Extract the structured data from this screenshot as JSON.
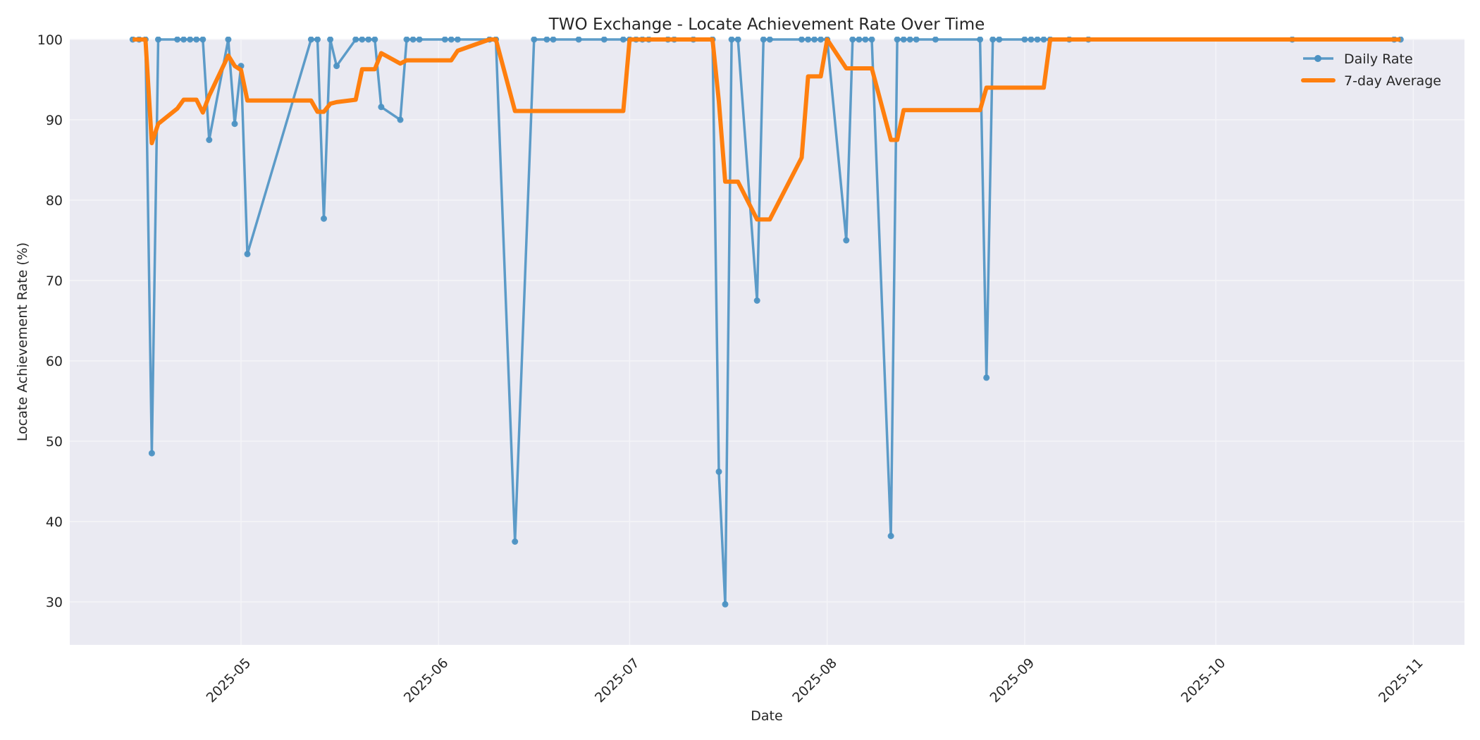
{
  "chart_data": {
    "type": "line",
    "title": "TWO Exchange - Locate Achievement Rate Over Time",
    "xlabel": "Date",
    "ylabel": "Locate Achievement Rate (%)",
    "ylim": [
      24.7,
      100
    ],
    "xlim": [
      "2025-04-03",
      "2025-11-06"
    ],
    "yticks": [
      30,
      40,
      50,
      60,
      70,
      80,
      90,
      100
    ],
    "xticks": [
      "2025-05",
      "2025-06",
      "2025-07",
      "2025-08",
      "2025-09",
      "2025-10",
      "2025-11"
    ],
    "xtick_dates": [
      "2025-05-01",
      "2025-06-01",
      "2025-07-01",
      "2025-08-01",
      "2025-09-01",
      "2025-10-01",
      "2025-11-01"
    ],
    "grid": true,
    "background": "#eaeaf2",
    "legend": {
      "position": "upper right",
      "entries": [
        "Daily Rate",
        "7-day Average"
      ]
    },
    "series": [
      {
        "name": "Daily Rate",
        "color": "#4c92c3",
        "marker": "circle",
        "points": [
          [
            "2025-04-14",
            100
          ],
          [
            "2025-04-15",
            100
          ],
          [
            "2025-04-16",
            100
          ],
          [
            "2025-04-17",
            48.5
          ],
          [
            "2025-04-18",
            100
          ],
          [
            "2025-04-21",
            100
          ],
          [
            "2025-04-22",
            100
          ],
          [
            "2025-04-23",
            100
          ],
          [
            "2025-04-24",
            100
          ],
          [
            "2025-04-25",
            100
          ],
          [
            "2025-04-26",
            87.5
          ],
          [
            "2025-04-29",
            100
          ],
          [
            "2025-04-30",
            89.5
          ],
          [
            "2025-05-01",
            96.7
          ],
          [
            "2025-05-02",
            73.3
          ],
          [
            "2025-05-12",
            100
          ],
          [
            "2025-05-13",
            100
          ],
          [
            "2025-05-14",
            77.7
          ],
          [
            "2025-05-15",
            100
          ],
          [
            "2025-05-16",
            96.7
          ],
          [
            "2025-05-19",
            100
          ],
          [
            "2025-05-20",
            100
          ],
          [
            "2025-05-21",
            100
          ],
          [
            "2025-05-22",
            100
          ],
          [
            "2025-05-23",
            91.6
          ],
          [
            "2025-05-26",
            90
          ],
          [
            "2025-05-27",
            100
          ],
          [
            "2025-05-28",
            100
          ],
          [
            "2025-05-29",
            100
          ],
          [
            "2025-06-02",
            100
          ],
          [
            "2025-06-03",
            100
          ],
          [
            "2025-06-04",
            100
          ],
          [
            "2025-06-09",
            100
          ],
          [
            "2025-06-10",
            100
          ],
          [
            "2025-06-13",
            37.5
          ],
          [
            "2025-06-16",
            100
          ],
          [
            "2025-06-18",
            100
          ],
          [
            "2025-06-19",
            100
          ],
          [
            "2025-06-23",
            100
          ],
          [
            "2025-06-27",
            100
          ],
          [
            "2025-06-30",
            100
          ],
          [
            "2025-07-01",
            100
          ],
          [
            "2025-07-02",
            100
          ],
          [
            "2025-07-03",
            100
          ],
          [
            "2025-07-04",
            100
          ],
          [
            "2025-07-07",
            100
          ],
          [
            "2025-07-08",
            100
          ],
          [
            "2025-07-11",
            100
          ],
          [
            "2025-07-14",
            100
          ],
          [
            "2025-07-15",
            46.2
          ],
          [
            "2025-07-16",
            29.7
          ],
          [
            "2025-07-17",
            100
          ],
          [
            "2025-07-18",
            100
          ],
          [
            "2025-07-21",
            67.5
          ],
          [
            "2025-07-22",
            100
          ],
          [
            "2025-07-23",
            100
          ],
          [
            "2025-07-28",
            100
          ],
          [
            "2025-07-29",
            100
          ],
          [
            "2025-07-30",
            100
          ],
          [
            "2025-07-31",
            100
          ],
          [
            "2025-08-01",
            100
          ],
          [
            "2025-08-04",
            75
          ],
          [
            "2025-08-05",
            100
          ],
          [
            "2025-08-06",
            100
          ],
          [
            "2025-08-07",
            100
          ],
          [
            "2025-08-08",
            100
          ],
          [
            "2025-08-11",
            38.2
          ],
          [
            "2025-08-12",
            100
          ],
          [
            "2025-08-13",
            100
          ],
          [
            "2025-08-14",
            100
          ],
          [
            "2025-08-15",
            100
          ],
          [
            "2025-08-18",
            100
          ],
          [
            "2025-08-25",
            100
          ],
          [
            "2025-08-26",
            57.9
          ],
          [
            "2025-08-27",
            100
          ],
          [
            "2025-08-28",
            100
          ],
          [
            "2025-09-01",
            100
          ],
          [
            "2025-09-02",
            100
          ],
          [
            "2025-09-03",
            100
          ],
          [
            "2025-09-04",
            100
          ],
          [
            "2025-09-05",
            100
          ],
          [
            "2025-09-08",
            100
          ],
          [
            "2025-09-11",
            100
          ],
          [
            "2025-10-13",
            100
          ],
          [
            "2025-10-29",
            100
          ],
          [
            "2025-10-30",
            100
          ]
        ]
      },
      {
        "name": "7-day Average",
        "color": "#ff7f0e",
        "points": [
          [
            "2025-04-14",
            100
          ],
          [
            "2025-04-15",
            100
          ],
          [
            "2025-04-16",
            100
          ],
          [
            "2025-04-17",
            87.1
          ],
          [
            "2025-04-18",
            89.5
          ],
          [
            "2025-04-21",
            91.4
          ],
          [
            "2025-04-22",
            92.5
          ],
          [
            "2025-04-23",
            92.5
          ],
          [
            "2025-04-24",
            92.5
          ],
          [
            "2025-04-25",
            90.9
          ],
          [
            "2025-04-26",
            93.0
          ],
          [
            "2025-04-29",
            98.0
          ],
          [
            "2025-04-30",
            96.7
          ],
          [
            "2025-05-01",
            96.2
          ],
          [
            "2025-05-02",
            92.4
          ],
          [
            "2025-05-12",
            92.4
          ],
          [
            "2025-05-13",
            91.0
          ],
          [
            "2025-05-14",
            91.0
          ],
          [
            "2025-05-15",
            92.0
          ],
          [
            "2025-05-16",
            92.2
          ],
          [
            "2025-05-19",
            92.5
          ],
          [
            "2025-05-20",
            96.3
          ],
          [
            "2025-05-21",
            96.3
          ],
          [
            "2025-05-22",
            96.3
          ],
          [
            "2025-05-23",
            98.3
          ],
          [
            "2025-05-26",
            97.0
          ],
          [
            "2025-05-27",
            97.4
          ],
          [
            "2025-05-28",
            97.4
          ],
          [
            "2025-05-29",
            97.4
          ],
          [
            "2025-06-02",
            97.4
          ],
          [
            "2025-06-03",
            97.4
          ],
          [
            "2025-06-04",
            98.6
          ],
          [
            "2025-06-09",
            100
          ],
          [
            "2025-06-10",
            100
          ],
          [
            "2025-06-13",
            91.1
          ],
          [
            "2025-06-16",
            91.1
          ],
          [
            "2025-06-18",
            91.1
          ],
          [
            "2025-06-19",
            91.1
          ],
          [
            "2025-06-23",
            91.1
          ],
          [
            "2025-06-27",
            91.1
          ],
          [
            "2025-06-30",
            91.1
          ],
          [
            "2025-07-01",
            100
          ],
          [
            "2025-07-02",
            100
          ],
          [
            "2025-07-03",
            100
          ],
          [
            "2025-07-04",
            100
          ],
          [
            "2025-07-07",
            100
          ],
          [
            "2025-07-08",
            100
          ],
          [
            "2025-07-11",
            100
          ],
          [
            "2025-07-14",
            100
          ],
          [
            "2025-07-15",
            92.3
          ],
          [
            "2025-07-16",
            82.3
          ],
          [
            "2025-07-17",
            82.3
          ],
          [
            "2025-07-18",
            82.3
          ],
          [
            "2025-07-21",
            77.6
          ],
          [
            "2025-07-22",
            77.6
          ],
          [
            "2025-07-23",
            77.6
          ],
          [
            "2025-07-28",
            85.3
          ],
          [
            "2025-07-29",
            95.4
          ],
          [
            "2025-07-30",
            95.4
          ],
          [
            "2025-07-31",
            95.4
          ],
          [
            "2025-08-01",
            100
          ],
          [
            "2025-08-04",
            96.4
          ],
          [
            "2025-08-05",
            96.4
          ],
          [
            "2025-08-06",
            96.4
          ],
          [
            "2025-08-07",
            96.4
          ],
          [
            "2025-08-08",
            96.4
          ],
          [
            "2025-08-11",
            87.5
          ],
          [
            "2025-08-12",
            87.5
          ],
          [
            "2025-08-13",
            91.2
          ],
          [
            "2025-08-14",
            91.2
          ],
          [
            "2025-08-15",
            91.2
          ],
          [
            "2025-08-18",
            91.2
          ],
          [
            "2025-08-25",
            91.2
          ],
          [
            "2025-08-26",
            94.0
          ],
          [
            "2025-08-27",
            94.0
          ],
          [
            "2025-08-28",
            94.0
          ],
          [
            "2025-09-01",
            94.0
          ],
          [
            "2025-09-02",
            94.0
          ],
          [
            "2025-09-03",
            94.0
          ],
          [
            "2025-09-04",
            94.0
          ],
          [
            "2025-09-05",
            100
          ],
          [
            "2025-09-08",
            100
          ],
          [
            "2025-09-11",
            100
          ],
          [
            "2025-10-13",
            100
          ],
          [
            "2025-10-29",
            100
          ],
          [
            "2025-10-30",
            100
          ]
        ]
      }
    ]
  }
}
